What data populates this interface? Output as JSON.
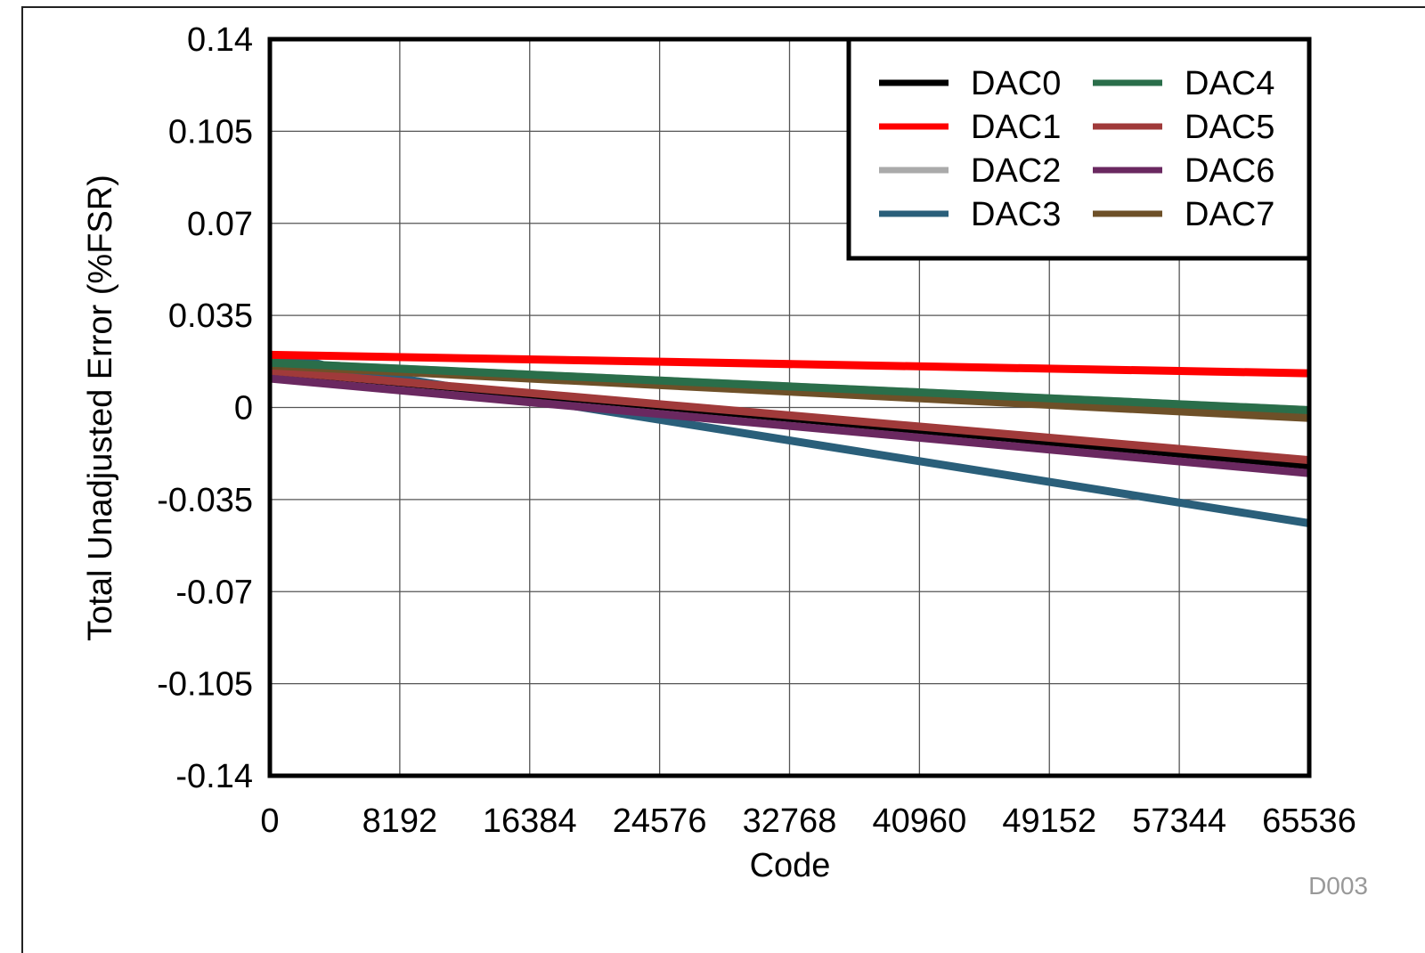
{
  "chart_data": {
    "type": "line",
    "title": "",
    "xlabel": "Code",
    "ylabel": "Total Unadjusted Error (%FSR)",
    "xlim": [
      0,
      65536
    ],
    "ylim": [
      -0.14,
      0.14
    ],
    "xticks": [
      "0",
      "8192",
      "16384",
      "24576",
      "32768",
      "40960",
      "49152",
      "57344",
      "65536"
    ],
    "xtick_values": [
      0,
      8192,
      16384,
      24576,
      32768,
      40960,
      49152,
      57344,
      65536
    ],
    "yticks": [
      "0.14",
      "0.105",
      "0.07",
      "0.035",
      "0",
      "-0.035",
      "-0.07",
      "-0.105",
      "-0.14"
    ],
    "ytick_values": [
      0.14,
      0.105,
      0.07,
      0.035,
      0,
      -0.035,
      -0.07,
      -0.105,
      -0.14
    ],
    "grid": true,
    "legend_placement": "top-right",
    "figure_id": "D003",
    "series": [
      {
        "name": "DAC0",
        "color": "#000000",
        "x": [
          0,
          65535
        ],
        "y": [
          0.014,
          -0.022
        ]
      },
      {
        "name": "DAC1",
        "color": "#ff0000",
        "x": [
          0,
          65535
        ],
        "y": [
          0.02,
          0.013
        ]
      },
      {
        "name": "DAC2",
        "color": "#aaaaaa",
        "x": [
          0,
          65535
        ],
        "y": [
          0.017,
          -0.001
        ]
      },
      {
        "name": "DAC3",
        "color": "#2a5f7a",
        "x": [
          0,
          1500,
          4096,
          65535
        ],
        "y": [
          0.019,
          0.019,
          0.015,
          -0.044
        ]
      },
      {
        "name": "DAC4",
        "color": "#2a6e4a",
        "x": [
          0,
          65535
        ],
        "y": [
          0.017,
          -0.001
        ]
      },
      {
        "name": "DAC5",
        "color": "#a03a3a",
        "x": [
          0,
          65535
        ],
        "y": [
          0.014,
          -0.02
        ]
      },
      {
        "name": "DAC6",
        "color": "#6a2860",
        "x": [
          0,
          65535
        ],
        "y": [
          0.011,
          -0.025
        ]
      },
      {
        "name": "DAC7",
        "color": "#6e5028",
        "x": [
          0,
          65535
        ],
        "y": [
          0.016,
          -0.004
        ]
      }
    ],
    "draw_order": [
      "DAC2",
      "DAC3",
      "DAC0",
      "DAC6",
      "DAC5",
      "DAC7",
      "DAC4",
      "DAC1"
    ]
  }
}
